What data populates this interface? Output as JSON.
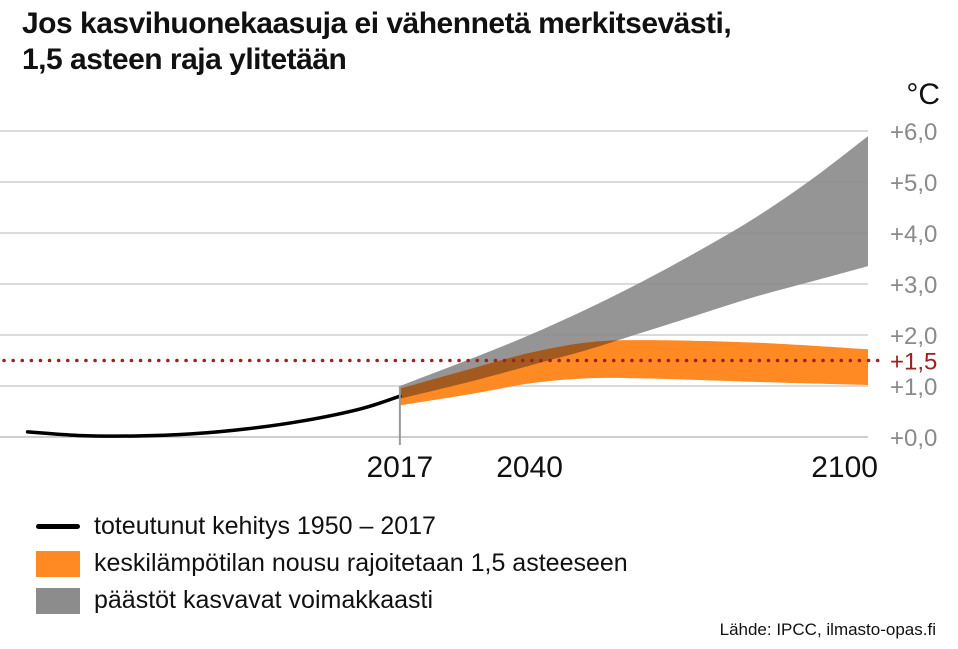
{
  "title_lines": [
    "Jos kasvihuonekaasuja ei vähennetä merkitsevästi,",
    "1,5 asteen raja ylitetään"
  ],
  "source": "Lähde: IPCC, ilmasto-opas.fi",
  "colors": {
    "historical": "#000000",
    "limited": "#ff8a24",
    "growing": "#8c8c8c",
    "reference": "#9b2222",
    "grid": "#cfcfcf",
    "overlap": "#a35a1e"
  },
  "chart_data": {
    "type": "area",
    "unit_label": "°C",
    "ylim": [
      0,
      6
    ],
    "xlim": [
      1950,
      2100
    ],
    "y_ticks": [
      {
        "value": 0,
        "label": "+0,0"
      },
      {
        "value": 1,
        "label": "+1,0"
      },
      {
        "value": 2,
        "label": "+2,0"
      },
      {
        "value": 3,
        "label": "+3,0"
      },
      {
        "value": 4,
        "label": "+4,0"
      },
      {
        "value": 5,
        "label": "+5,0"
      },
      {
        "value": 6,
        "label": "+6,0"
      }
    ],
    "x_ticks": [
      {
        "value": 2017,
        "label": "2017"
      },
      {
        "value": 2040,
        "label": "2040"
      },
      {
        "value": 2100,
        "label": "2100"
      }
    ],
    "reference_line": {
      "value": 1.5,
      "label": "+1,5"
    },
    "series": [
      {
        "name": "toteutunut kehitys 1950 – 2017",
        "kind": "line",
        "points": [
          [
            1951,
            0.1
          ],
          [
            1960,
            0.03
          ],
          [
            1970,
            0.02
          ],
          [
            1980,
            0.06
          ],
          [
            1990,
            0.16
          ],
          [
            2000,
            0.32
          ],
          [
            2010,
            0.55
          ],
          [
            2017,
            0.8
          ]
        ]
      },
      {
        "name": "keskilämpötilan nousu rajoitetaan 1,5 asteeseen",
        "kind": "band",
        "upper": [
          [
            2017,
            0.95
          ],
          [
            2030,
            1.35
          ],
          [
            2040,
            1.65
          ],
          [
            2050,
            1.85
          ],
          [
            2060,
            1.9
          ],
          [
            2080,
            1.85
          ],
          [
            2100,
            1.72
          ]
        ],
        "lower": [
          [
            2017,
            0.62
          ],
          [
            2030,
            0.85
          ],
          [
            2040,
            1.05
          ],
          [
            2050,
            1.15
          ],
          [
            2060,
            1.15
          ],
          [
            2080,
            1.08
          ],
          [
            2100,
            1.02
          ]
        ]
      },
      {
        "name": "päästöt kasvavat voimakkaasti",
        "kind": "band",
        "upper": [
          [
            2017,
            1.0
          ],
          [
            2030,
            1.55
          ],
          [
            2040,
            2.0
          ],
          [
            2050,
            2.5
          ],
          [
            2060,
            3.05
          ],
          [
            2070,
            3.65
          ],
          [
            2080,
            4.3
          ],
          [
            2090,
            5.05
          ],
          [
            2100,
            5.9
          ]
        ],
        "lower": [
          [
            2017,
            0.75
          ],
          [
            2030,
            1.1
          ],
          [
            2040,
            1.4
          ],
          [
            2050,
            1.7
          ],
          [
            2060,
            2.05
          ],
          [
            2070,
            2.4
          ],
          [
            2080,
            2.75
          ],
          [
            2090,
            3.05
          ],
          [
            2100,
            3.35
          ]
        ]
      }
    ]
  }
}
